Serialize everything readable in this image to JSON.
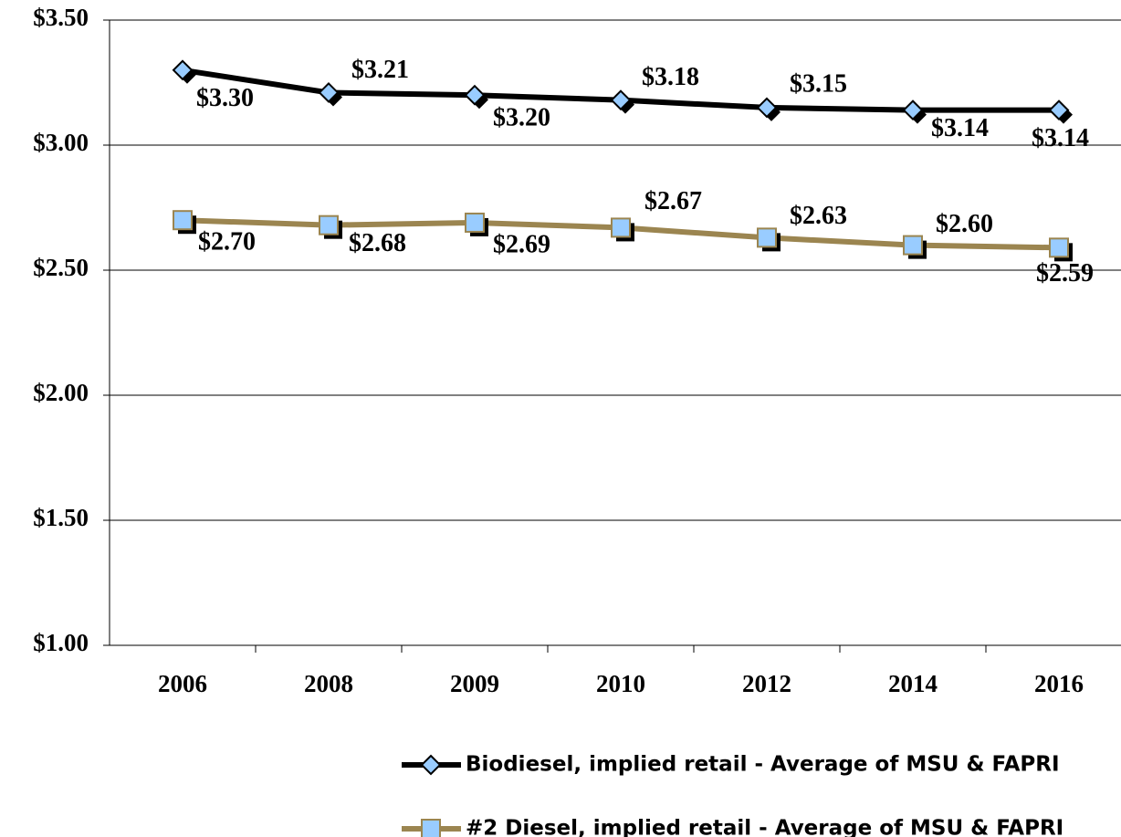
{
  "chart_data": {
    "type": "line",
    "categories": [
      "2006",
      "2008",
      "2009",
      "2010",
      "2012",
      "2014",
      "2016"
    ],
    "series": [
      {
        "name": "Biodiesel, implied retail - Average of MSU & FAPRI",
        "color": "#000000",
        "marker": "diamond",
        "marker_fill": "#99ccff",
        "values": [
          3.3,
          3.21,
          3.2,
          3.18,
          3.15,
          3.14,
          3.14
        ],
        "value_labels": [
          "$3.30",
          "$3.21",
          "$3.20",
          "$3.18",
          "$3.15",
          "$3.14",
          "$3.14"
        ]
      },
      {
        "name": "#2 Diesel, implied retail - Average of MSU & FAPRI",
        "color": "#9b8550",
        "marker": "square",
        "marker_fill": "#99ccff",
        "values": [
          2.7,
          2.68,
          2.69,
          2.67,
          2.63,
          2.6,
          2.59
        ],
        "value_labels": [
          "$2.70",
          "$2.68",
          "$2.69",
          "$2.67",
          "$2.63",
          "$2.60",
          "$2.59"
        ]
      }
    ],
    "ylim": [
      1.0,
      3.5
    ],
    "yticks": [
      {
        "value": 1.0,
        "label": "$1.00"
      },
      {
        "value": 1.5,
        "label": "$1.50"
      },
      {
        "value": 2.0,
        "label": "$2.00"
      },
      {
        "value": 2.5,
        "label": "$2.50"
      },
      {
        "value": 3.0,
        "label": "$3.00"
      },
      {
        "value": 3.5,
        "label": "$3.50"
      }
    ],
    "grid": true,
    "legend": "bottom-right"
  }
}
